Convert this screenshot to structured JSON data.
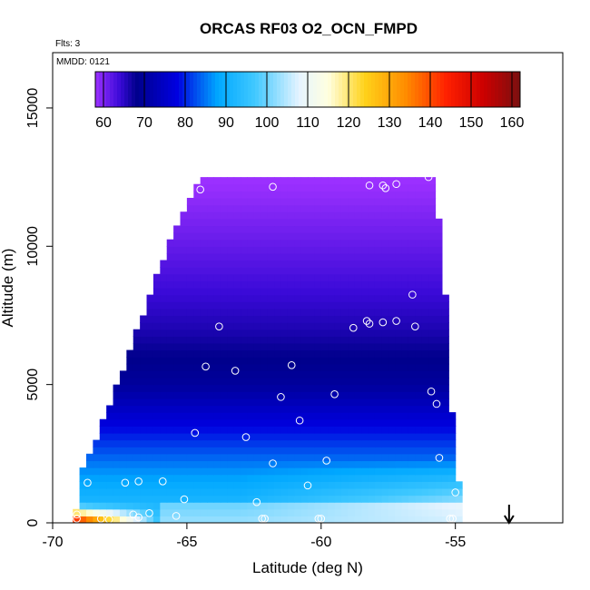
{
  "chart_data": {
    "type": "heatmap",
    "title": "ORCAS RF03 O2_OCN_FMPD",
    "flights_note": "Flts: 3",
    "date_note": "MMDD: 0121",
    "xlabel": "Latitude (deg N)",
    "ylabel": "Altitude (m)",
    "xlim": [
      -70,
      -51
    ],
    "ylim": [
      0,
      17000
    ],
    "x_ticks": [
      -70,
      -65,
      -60,
      -55
    ],
    "x_tick_labels": [
      "-70",
      "-65",
      "-60",
      "-55"
    ],
    "y_ticks": [
      0,
      5000,
      10000,
      15000
    ],
    "y_tick_labels": [
      "0",
      "5000",
      "10000",
      "15000"
    ],
    "colorbar": {
      "min": 58,
      "max": 162,
      "ticks": [
        60,
        70,
        80,
        90,
        100,
        110,
        120,
        130,
        140,
        150,
        160
      ],
      "tick_labels": [
        "60",
        "70",
        "80",
        "90",
        "100",
        "110",
        "120",
        "130",
        "140",
        "150",
        "160"
      ],
      "stops": [
        {
          "v": 58,
          "color": "#9b30ff"
        },
        {
          "v": 64,
          "color": "#3a0ad8"
        },
        {
          "v": 68,
          "color": "#00008b"
        },
        {
          "v": 78,
          "color": "#0000e0"
        },
        {
          "v": 88,
          "color": "#00a8ff"
        },
        {
          "v": 97,
          "color": "#40c8ff"
        },
        {
          "v": 108,
          "color": "#e6f4ff"
        },
        {
          "v": 115,
          "color": "#ffffe0"
        },
        {
          "v": 124,
          "color": "#ffd21a"
        },
        {
          "v": 134,
          "color": "#ff8c00"
        },
        {
          "v": 144,
          "color": "#ff2000"
        },
        {
          "v": 153,
          "color": "#cc0000"
        },
        {
          "v": 162,
          "color": "#7a1010"
        }
      ]
    },
    "field_extent": {
      "top_alt_m": 12300,
      "left_boundary": [
        {
          "alt": 0,
          "lat": -69.2
        },
        {
          "alt": 600,
          "lat": -69.0
        },
        {
          "alt": 1800,
          "lat": -68.8
        },
        {
          "alt": 2500,
          "lat": -68.5
        },
        {
          "alt": 4500,
          "lat": -67.7
        },
        {
          "alt": 6500,
          "lat": -66.9
        },
        {
          "alt": 9000,
          "lat": -66.0
        },
        {
          "alt": 11000,
          "lat": -65.2
        },
        {
          "alt": 12300,
          "lat": -64.5
        }
      ],
      "right_boundary": [
        {
          "alt": 0,
          "lat": -54.8
        },
        {
          "alt": 1500,
          "lat": -55.0
        },
        {
          "alt": 3000,
          "lat": -55.2
        },
        {
          "alt": 5000,
          "lat": -55.3
        },
        {
          "alt": 7000,
          "lat": -55.4
        },
        {
          "alt": 9500,
          "lat": -55.6
        },
        {
          "alt": 11500,
          "lat": -55.8
        },
        {
          "alt": 12600,
          "lat": -55.9
        }
      ]
    },
    "arrow_lat": -53.0,
    "observations": [
      {
        "lat": -64.5,
        "alt": 12050
      },
      {
        "lat": -61.8,
        "alt": 12150
      },
      {
        "lat": -58.2,
        "alt": 12200
      },
      {
        "lat": -57.7,
        "alt": 12200
      },
      {
        "lat": -57.6,
        "alt": 12100
      },
      {
        "lat": -57.2,
        "alt": 12250
      },
      {
        "lat": -56.0,
        "alt": 12500
      },
      {
        "lat": -56.6,
        "alt": 8250
      },
      {
        "lat": -63.8,
        "alt": 7100
      },
      {
        "lat": -58.8,
        "alt": 7050
      },
      {
        "lat": -58.3,
        "alt": 7300
      },
      {
        "lat": -58.2,
        "alt": 7200
      },
      {
        "lat": -57.7,
        "alt": 7250
      },
      {
        "lat": -57.2,
        "alt": 7300
      },
      {
        "lat": -56.5,
        "alt": 7100
      },
      {
        "lat": -64.3,
        "alt": 5650
      },
      {
        "lat": -63.2,
        "alt": 5500
      },
      {
        "lat": -61.1,
        "alt": 5700
      },
      {
        "lat": -55.9,
        "alt": 4750
      },
      {
        "lat": -59.5,
        "alt": 4650
      },
      {
        "lat": -61.5,
        "alt": 4550
      },
      {
        "lat": -55.7,
        "alt": 4300
      },
      {
        "lat": -60.8,
        "alt": 3700
      },
      {
        "lat": -64.7,
        "alt": 3250
      },
      {
        "lat": -62.8,
        "alt": 3100
      },
      {
        "lat": -55.6,
        "alt": 2350
      },
      {
        "lat": -59.8,
        "alt": 2250
      },
      {
        "lat": -61.8,
        "alt": 2150
      },
      {
        "lat": -68.7,
        "alt": 1450
      },
      {
        "lat": -67.3,
        "alt": 1450
      },
      {
        "lat": -66.8,
        "alt": 1500
      },
      {
        "lat": -65.9,
        "alt": 1500
      },
      {
        "lat": -60.5,
        "alt": 1350
      },
      {
        "lat": -55.0,
        "alt": 1100
      },
      {
        "lat": -65.1,
        "alt": 850
      },
      {
        "lat": -62.4,
        "alt": 750
      },
      {
        "lat": -66.4,
        "alt": 350
      },
      {
        "lat": -69.1,
        "alt": 300
      },
      {
        "lat": -67.0,
        "alt": 300
      },
      {
        "lat": -65.4,
        "alt": 250
      },
      {
        "lat": -69.1,
        "alt": 150
      },
      {
        "lat": -68.2,
        "alt": 150
      },
      {
        "lat": -67.9,
        "alt": 120
      },
      {
        "lat": -66.8,
        "alt": 200
      },
      {
        "lat": -62.2,
        "alt": 150
      },
      {
        "lat": -62.1,
        "alt": 150
      },
      {
        "lat": -60.1,
        "alt": 150
      },
      {
        "lat": -60.0,
        "alt": 150
      },
      {
        "lat": -55.2,
        "alt": 150
      },
      {
        "lat": -55.1,
        "alt": 150
      }
    ]
  }
}
